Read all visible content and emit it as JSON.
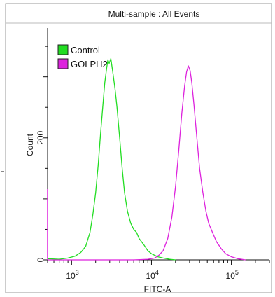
{
  "chart_data": {
    "type": "line",
    "title": "Multi-sample : All Events",
    "xlabel": "FITC-A",
    "ylabel": "Count",
    "x_scale": "log",
    "xlim": [
      500,
      300000
    ],
    "ylim": [
      0,
      380
    ],
    "x_ticks": [
      {
        "value": 1000,
        "base": "10",
        "exp": "3"
      },
      {
        "value": 10000,
        "base": "10",
        "exp": "4"
      },
      {
        "value": 100000,
        "base": "10",
        "exp": "5"
      }
    ],
    "y_ticks": [
      {
        "value": 0,
        "label": "0"
      },
      {
        "value": 200,
        "label": "200"
      }
    ],
    "legend": {
      "position": "top-left"
    },
    "colors": {
      "frame": "#999999",
      "axis": "#111111"
    },
    "series": [
      {
        "name": "Control",
        "color": "#22dd22",
        "points": [
          [
            500,
            2
          ],
          [
            700,
            1
          ],
          [
            900,
            3
          ],
          [
            1100,
            6
          ],
          [
            1300,
            12
          ],
          [
            1500,
            22
          ],
          [
            1700,
            45
          ],
          [
            1850,
            75
          ],
          [
            2000,
            110
          ],
          [
            2150,
            155
          ],
          [
            2300,
            205
          ],
          [
            2450,
            250
          ],
          [
            2600,
            290
          ],
          [
            2750,
            315
          ],
          [
            2850,
            328
          ],
          [
            2950,
            322
          ],
          [
            3100,
            330
          ],
          [
            3300,
            305
          ],
          [
            3500,
            280
          ],
          [
            3700,
            250
          ],
          [
            4000,
            200
          ],
          [
            4300,
            150
          ],
          [
            4600,
            110
          ],
          [
            5000,
            80
          ],
          [
            5500,
            60
          ],
          [
            6000,
            50
          ],
          [
            6500,
            45
          ],
          [
            7000,
            35
          ],
          [
            8000,
            25
          ],
          [
            9000,
            15
          ],
          [
            10000,
            10
          ],
          [
            12000,
            5
          ],
          [
            14000,
            3
          ],
          [
            17000,
            1
          ],
          [
            20000,
            0
          ]
        ]
      },
      {
        "name": "GOLPH2",
        "color": "#dd22dd",
        "points": [
          [
            500,
            0
          ],
          [
            1000,
            0
          ],
          [
            3000,
            0
          ],
          [
            6000,
            0
          ],
          [
            9000,
            1
          ],
          [
            11000,
            3
          ],
          [
            12500,
            8
          ],
          [
            14000,
            15
          ],
          [
            16000,
            35
          ],
          [
            18000,
            70
          ],
          [
            20000,
            120
          ],
          [
            22000,
            180
          ],
          [
            24000,
            240
          ],
          [
            26000,
            285
          ],
          [
            27500,
            308
          ],
          [
            29000,
            318
          ],
          [
            30500,
            310
          ],
          [
            32000,
            290
          ],
          [
            34000,
            255
          ],
          [
            37000,
            200
          ],
          [
            40000,
            150
          ],
          [
            44000,
            110
          ],
          [
            48000,
            80
          ],
          [
            52000,
            60
          ],
          [
            58000,
            45
          ],
          [
            65000,
            30
          ],
          [
            75000,
            18
          ],
          [
            85000,
            10
          ],
          [
            100000,
            5
          ],
          [
            120000,
            2
          ],
          [
            150000,
            0
          ]
        ]
      }
    ]
  }
}
